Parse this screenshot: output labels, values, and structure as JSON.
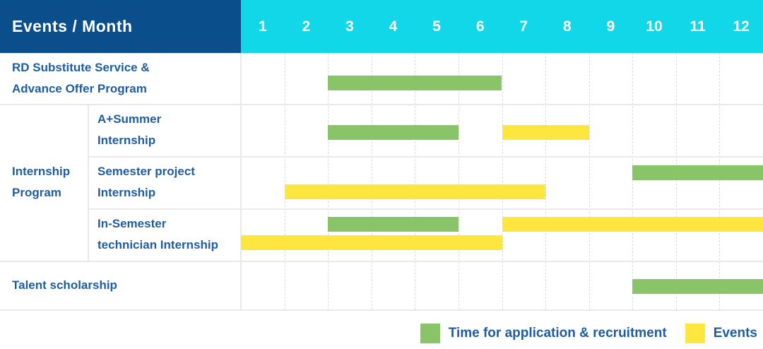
{
  "header": {
    "title": "Events / Month"
  },
  "colors": {
    "navy": "#0a4e8c",
    "cyan": "#12d7e9",
    "green": "#8ac468",
    "yellow": "#ffe540",
    "label_text": "#1e5da2",
    "grid_line": "#e9e9e9",
    "header_text": "#ffffff"
  },
  "legend": {
    "items": [
      {
        "icon": "green-swatch",
        "color": "green",
        "label": "Time for application & recruitment"
      },
      {
        "icon": "yellow-swatch",
        "color": "yellow",
        "label": "Events"
      }
    ]
  },
  "chart_data": {
    "type": "gantt",
    "title": "Events / Month",
    "months": [
      "1",
      "2",
      "3",
      "4",
      "5",
      "6",
      "7",
      "8",
      "9",
      "10",
      "11",
      "12"
    ],
    "x_range": [
      1,
      12
    ],
    "series_legend": {
      "green": "Time for application & recruitment",
      "yellow": "Events"
    },
    "group": {
      "id": "internship-program",
      "label": "Internship Program",
      "label_lines": [
        "Internship",
        "Program"
      ],
      "row_indexes": [
        1,
        2,
        3
      ]
    },
    "rows": [
      {
        "id": "rd-substitute-service",
        "label": "RD Substitute Service & Advance Offer Program",
        "label_lines": [
          "RD Substitute Service &",
          "Advance Offer Program"
        ],
        "sub_row": false,
        "tracks": [
          [
            {
              "color": "green",
              "start_month": 3,
              "end_month": 6
            }
          ]
        ]
      },
      {
        "id": "a-plus-summer-internship",
        "label": "A+Summer Internship",
        "label_lines": [
          "A+Summer",
          "Internship"
        ],
        "sub_row": true,
        "tracks": [
          [
            {
              "color": "green",
              "start_month": 3,
              "end_month": 5
            },
            {
              "color": "yellow",
              "start_month": 7,
              "end_month": 8
            }
          ]
        ]
      },
      {
        "id": "semester-project-internship",
        "label": "Semester project Internship",
        "label_lines": [
          "Semester project",
          "Internship"
        ],
        "sub_row": true,
        "tracks": [
          [
            {
              "color": "green",
              "start_month": 10,
              "end_month": 12
            }
          ],
          [
            {
              "color": "yellow",
              "start_month": 2,
              "end_month": 7
            }
          ]
        ]
      },
      {
        "id": "in-semester-technician-internship",
        "label": "In-Semester technician Internship",
        "label_lines": [
          "In-Semester",
          "technician Internship"
        ],
        "sub_row": true,
        "tracks": [
          [
            {
              "color": "green",
              "start_month": 3,
              "end_month": 5
            },
            {
              "color": "yellow",
              "start_month": 7,
              "end_month": 12
            }
          ],
          [
            {
              "color": "yellow",
              "start_month": 1,
              "end_month": 6
            }
          ]
        ]
      },
      {
        "id": "talent-scholarship",
        "label": "Talent scholarship",
        "label_lines": [
          "Talent scholarship"
        ],
        "sub_row": false,
        "tracks": [
          [
            {
              "color": "green",
              "start_month": 10,
              "end_month": 12
            }
          ]
        ]
      }
    ]
  }
}
